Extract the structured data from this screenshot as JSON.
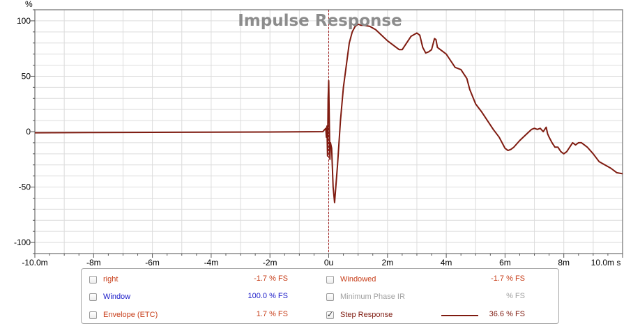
{
  "chart_data": {
    "type": "line",
    "title": "Impulse Response",
    "ylabel": "%",
    "xlabel": "",
    "xlim": [
      -10,
      10
    ],
    "ylim": [
      -110,
      110
    ],
    "x_unit": "ms",
    "grid": true,
    "line_color": "#7f1b10",
    "marker_x": 0,
    "marker_color": "#a01a1a",
    "x_ticks": [
      {
        "v": -10,
        "label": "-10.0m"
      },
      {
        "v": -8,
        "label": "-8m"
      },
      {
        "v": -6,
        "label": "-6m"
      },
      {
        "v": -4,
        "label": "-4m"
      },
      {
        "v": -2,
        "label": "-2m"
      },
      {
        "v": 0,
        "label": "0u"
      },
      {
        "v": 2,
        "label": "2m"
      },
      {
        "v": 4,
        "label": "4m"
      },
      {
        "v": 6,
        "label": "6m"
      },
      {
        "v": 8,
        "label": "8m"
      },
      {
        "v": 10,
        "label": "10.0m s"
      }
    ],
    "y_ticks": [
      {
        "v": 100,
        "label": "100"
      },
      {
        "v": 50,
        "label": "50"
      },
      {
        "v": 0,
        "label": "0"
      },
      {
        "v": -50,
        "label": "-50"
      },
      {
        "v": -100,
        "label": "-100"
      }
    ],
    "series": [
      {
        "name": "Step Response",
        "x": [
          -10,
          -8,
          -6,
          -4,
          -2,
          -0.2,
          -0.1,
          -0.08,
          -0.06,
          -0.04,
          -0.02,
          0.0,
          0.02,
          0.04,
          0.06,
          0.1,
          0.15,
          0.2,
          0.3,
          0.4,
          0.5,
          0.6,
          0.7,
          0.8,
          0.9,
          1.0,
          1.1,
          1.2,
          1.4,
          1.6,
          1.8,
          2.0,
          2.2,
          2.4,
          2.5,
          2.6,
          2.8,
          3.0,
          3.1,
          3.2,
          3.3,
          3.4,
          3.5,
          3.6,
          3.65,
          3.7,
          3.8,
          3.9,
          4.0,
          4.1,
          4.2,
          4.3,
          4.5,
          4.7,
          4.8,
          5.0,
          5.2,
          5.4,
          5.6,
          5.8,
          6.0,
          6.1,
          6.2,
          6.3,
          6.5,
          6.7,
          6.9,
          7.0,
          7.1,
          7.2,
          7.3,
          7.4,
          7.45,
          7.5,
          7.6,
          7.7,
          7.8,
          7.9,
          8.0,
          8.1,
          8.2,
          8.3,
          8.4,
          8.5,
          8.6,
          8.7,
          8.8,
          9.0,
          9.2,
          9.4,
          9.6,
          9.8,
          10.0
        ],
        "y": [
          -1,
          -0.8,
          -0.6,
          -0.5,
          -0.3,
          0,
          3,
          -5,
          5,
          -22,
          30,
          46,
          10,
          -25,
          -10,
          -15,
          -50,
          -64,
          -30,
          10,
          40,
          60,
          80,
          90,
          95,
          97,
          96,
          96,
          95,
          92,
          87,
          82,
          78,
          74,
          74,
          78,
          86,
          89,
          87,
          76,
          71,
          72,
          74,
          84,
          83,
          76,
          74,
          72,
          70,
          66,
          62,
          58,
          56,
          48,
          38,
          25,
          18,
          10,
          2,
          -5,
          -15,
          -17,
          -16,
          -14,
          -8,
          -3,
          2,
          3,
          2,
          3,
          0,
          4,
          -2,
          -5,
          -10,
          -14,
          -14,
          -18,
          -20,
          -18,
          -14,
          -10,
          -12,
          -10,
          -10,
          -12,
          -14,
          -20,
          -27,
          -30,
          -33,
          -37,
          -38
        ]
      }
    ]
  },
  "legend": {
    "items": [
      {
        "label": "right",
        "value": "-1.7 % FS",
        "checked": false,
        "color": "#c8401c"
      },
      {
        "label": "Window",
        "value": "100.0 % FS",
        "checked": false,
        "color": "#1a1ac8"
      },
      {
        "label": "Envelope (ETC)",
        "value": "1.7 % FS",
        "checked": false,
        "color": "#c8401c"
      },
      {
        "label": "Windowed",
        "value": "-1.7 % FS",
        "checked": false,
        "color": "#c8401c"
      },
      {
        "label": "Minimum Phase IR",
        "value": "% FS",
        "checked": false,
        "color": "#a0a0a0"
      },
      {
        "label": "Step Response",
        "value": "36.6 % FS",
        "checked": true,
        "color": "#7f1b10"
      }
    ],
    "check_glyph": "✓"
  }
}
